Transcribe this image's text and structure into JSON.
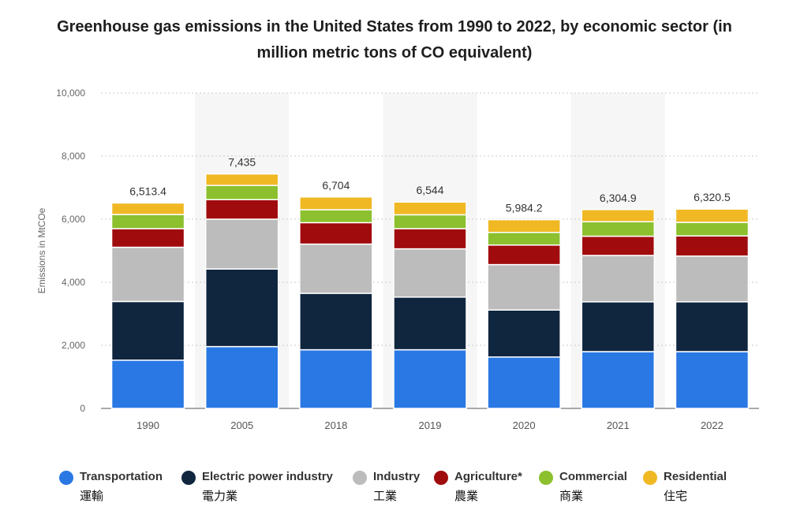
{
  "chart_data": {
    "type": "bar",
    "stacked": true,
    "title": "Greenhouse gas emissions in the United States from 1990 to 2022, by economic sector (in million metric tons of CO equivalent)",
    "ylabel": "Emissions in MtCOe",
    "xlabel": "",
    "ylim": [
      0,
      10000
    ],
    "yticks": [
      "0",
      "2,000",
      "4,000",
      "6,000",
      "8,000",
      "10,000"
    ],
    "ytick_values": [
      0,
      2000,
      4000,
      6000,
      8000,
      10000
    ],
    "grid": true,
    "legend_position": "bottom",
    "categories": [
      "1990",
      "2005",
      "2018",
      "2019",
      "2020",
      "2021",
      "2022"
    ],
    "totals": [
      "6,513.4",
      "7,435",
      "6,704",
      "6,544",
      "5,984.2",
      "6,304.9",
      "6,320.5"
    ],
    "series": [
      {
        "name": "Transportation",
        "sub": "運輸",
        "color": "#2a78e4",
        "values": [
          1530,
          1960,
          1860,
          1860,
          1630,
          1800,
          1800
        ]
      },
      {
        "name": "Electric power industry",
        "sub": "電力業",
        "color": "#10263f",
        "values": [
          1860,
          2460,
          1790,
          1670,
          1490,
          1580,
          1580
        ]
      },
      {
        "name": "Industry",
        "sub": "工業",
        "color": "#bcbcbc",
        "values": [
          1720,
          1580,
          1560,
          1530,
          1440,
          1470,
          1450
        ]
      },
      {
        "name": "Agriculture*",
        "sub": "農業",
        "color": "#a00b0d",
        "values": [
          590,
          620,
          680,
          640,
          620,
          610,
          640
        ]
      },
      {
        "name": "Commercial",
        "sub": "商業",
        "color": "#8cc02e",
        "values": [
          450,
          450,
          410,
          440,
          400,
          460,
          430
        ]
      },
      {
        "name": "Residential",
        "sub": "住宅",
        "color": "#f0b823",
        "values": [
          363.4,
          365,
          404,
          404,
          404.2,
          384.9,
          420.5
        ]
      }
    ]
  }
}
